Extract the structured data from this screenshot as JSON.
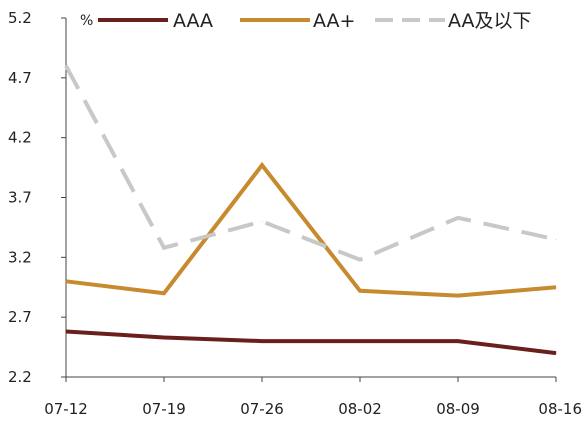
{
  "chart_data": {
    "type": "line",
    "unit": "%",
    "categories": [
      "07-12",
      "07-19",
      "07-26",
      "08-02",
      "08-09",
      "08-16"
    ],
    "ylim": [
      2.2,
      5.2
    ],
    "yticks": [
      "5.2",
      "4.7",
      "4.2",
      "3.7",
      "3.2",
      "2.7",
      "2.2"
    ],
    "legend_position": "top",
    "grid": false,
    "series": [
      {
        "name": "AAA",
        "color": "#6b1f1c",
        "dash": "solid",
        "values": [
          2.58,
          2.53,
          2.5,
          2.5,
          2.5,
          2.4
        ]
      },
      {
        "name": "AA+",
        "color": "#c78a2e",
        "dash": "solid",
        "values": [
          3.0,
          2.9,
          3.97,
          2.92,
          2.88,
          2.95
        ]
      },
      {
        "name": "AA及以下",
        "color": "#c8c8c8",
        "dash": "dashed",
        "values": [
          4.8,
          3.28,
          3.5,
          3.18,
          3.53,
          3.35
        ]
      }
    ]
  }
}
